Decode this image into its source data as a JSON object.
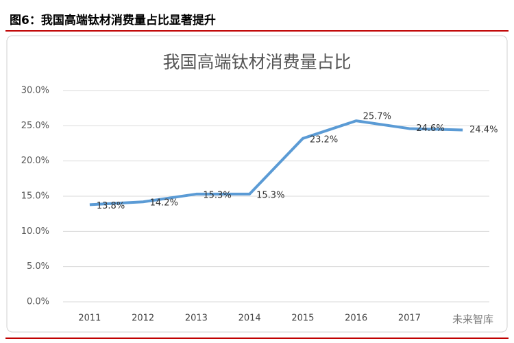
{
  "header": {
    "title": "图6：我国高端钛材消费量占比显著提升"
  },
  "watermark": "未来智库",
  "chart_data": {
    "type": "line",
    "title": "我国高端钛材消费量占比",
    "categories": [
      "2011",
      "2012",
      "2013",
      "2014",
      "2015",
      "2016",
      "2017",
      null
    ],
    "series": [
      {
        "name": "高端钛材消费量占比",
        "color": "#5b9bd5",
        "values": [
          13.8,
          14.2,
          15.3,
          15.3,
          23.2,
          25.7,
          24.6,
          24.4
        ],
        "value_labels": [
          "13.8%",
          "14.2%",
          "15.3%",
          "15.3%",
          "23.2%",
          "25.7%",
          "24.6%",
          "24.4%"
        ]
      }
    ],
    "ylim": [
      0,
      30
    ],
    "yticks": [
      {
        "value": 0,
        "label": "0.0%"
      },
      {
        "value": 5,
        "label": "5.0%"
      },
      {
        "value": 10,
        "label": "10.0%"
      },
      {
        "value": 15,
        "label": "15.0%"
      },
      {
        "value": 20,
        "label": "20.0%"
      },
      {
        "value": 25,
        "label": "25.0%"
      },
      {
        "value": 30,
        "label": "30.0%"
      }
    ],
    "grid": true
  }
}
